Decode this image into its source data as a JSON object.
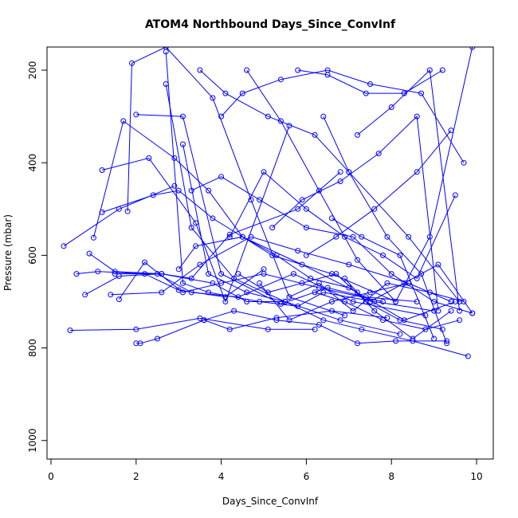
{
  "chart_data": {
    "type": "line",
    "title": "ATOM4 Northbound Days_Since_ConvInf",
    "xlabel": "Days_Since_ConvInf",
    "ylabel": "Pressure (mbar)",
    "xlim": [
      0,
      10
    ],
    "ylim": [
      1040,
      150
    ],
    "y_axis_inverted": true,
    "grid": false,
    "color": "#0000ff",
    "x_ticks": [
      "0",
      "2",
      "4",
      "6",
      "8",
      "10"
    ],
    "y_ticks": [
      "200",
      "400",
      "600",
      "800",
      "1000"
    ],
    "marker": "open-circle",
    "series": [
      {
        "x": [
          0.3,
          1.6,
          2.9
        ],
        "y": [
          580,
          500,
          450
        ]
      },
      {
        "x": [
          0.45,
          2.0,
          3.5,
          5.1,
          6.2
        ],
        "y": [
          762,
          760,
          736,
          760,
          760
        ]
      },
      {
        "x": [
          0.6,
          1.1,
          2.2,
          3.0,
          4.1,
          5.0
        ],
        "y": [
          640,
          635,
          640,
          675,
          690,
          630
        ]
      },
      {
        "x": [
          0.8,
          1.6,
          2.6,
          3.8,
          4.6,
          5.5
        ],
        "y": [
          685,
          645,
          640,
          660,
          700,
          700
        ]
      },
      {
        "x": [
          0.9,
          1.5,
          2.6,
          3.3,
          4.2,
          5.8,
          6.8
        ],
        "y": [
          596,
          635,
          640,
          650,
          555,
          500,
          420
        ]
      },
      {
        "x": [
          1.0,
          1.7,
          2.9,
          3.7,
          4.5,
          5.9,
          7.2
        ],
        "y": [
          562,
          310,
          390,
          460,
          560,
          620,
          680
        ]
      },
      {
        "x": [
          1.2,
          2.3,
          3.4,
          4.1,
          5.6
        ],
        "y": [
          416,
          390,
          530,
          700,
          320
        ]
      },
      {
        "x": [
          1.2,
          2.4,
          3.0,
          3.8,
          5.2,
          6.6,
          8.1
        ],
        "y": [
          507,
          470,
          460,
          520,
          600,
          640,
          700
        ]
      },
      {
        "x": [
          1.4,
          2.6,
          3.5,
          4.7,
          5.8,
          7.0,
          8.4
        ],
        "y": [
          685,
          680,
          620,
          560,
          590,
          620,
          660
        ]
      },
      {
        "x": [
          1.5,
          2.5,
          3.3,
          4.4,
          5.7,
          7.1,
          8.8
        ],
        "y": [
          640,
          640,
          680,
          690,
          640,
          700,
          730
        ]
      },
      {
        "x": [
          1.6,
          2.2,
          3.1,
          4.0,
          5.0,
          6.3,
          7.8
        ],
        "y": [
          695,
          615,
          680,
          660,
          640,
          670,
          700
        ]
      },
      {
        "x": [
          1.8,
          1.9,
          2.7,
          3.8,
          4.7,
          5.6,
          6.9
        ],
        "y": [
          505,
          185,
          150,
          260,
          480,
          690,
          730
        ]
      },
      {
        "x": [
          2.0,
          2.1,
          2.5,
          3.6,
          4.2,
          5.3,
          6.6,
          7.9
        ],
        "y": [
          790,
          790,
          780,
          740,
          760,
          735,
          720,
          735
        ]
      },
      {
        "x": [
          2.0,
          3.1,
          4.0,
          5.4,
          6.5,
          7.4,
          8.6
        ],
        "y": [
          296,
          300,
          640,
          705,
          670,
          690,
          700
        ]
      },
      {
        "x": [
          2.7,
          3.1,
          3.7,
          4.9,
          5.8,
          6.4,
          7.6,
          9.0
        ],
        "y": [
          160,
          660,
          680,
          700,
          710,
          680,
          700,
          720
        ]
      },
      {
        "x": [
          2.7,
          3.3,
          4.3,
          5.5,
          6.8,
          8.2
        ],
        "y": [
          230,
          540,
          650,
          700,
          740,
          770
        ]
      },
      {
        "x": [
          3.0,
          3.4,
          4.5,
          5.3,
          6.1,
          7.0,
          8.3,
          9.5
        ],
        "y": [
          630,
          580,
          560,
          600,
          650,
          670,
          740,
          700
        ]
      },
      {
        "x": [
          3.1,
          3.7,
          4.6,
          5.5,
          6.4,
          7.3,
          8.5,
          9.8
        ],
        "y": [
          360,
          640,
          680,
          700,
          740,
          760,
          785,
          818
        ]
      },
      {
        "x": [
          3.3,
          4.0,
          4.9,
          6.0,
          7.1,
          8.0,
          9.0,
          9.9
        ],
        "y": [
          460,
          430,
          480,
          540,
          560,
          640,
          700,
          725
        ]
      },
      {
        "x": [
          3.5,
          4.1,
          5.1,
          6.2,
          7.0,
          8.4,
          9.6
        ],
        "y": [
          200,
          250,
          300,
          340,
          420,
          560,
          700
        ]
      },
      {
        "x": [
          3.6,
          4.3,
          5.3,
          6.3,
          7.2,
          8.1,
          9.3
        ],
        "y": [
          740,
          720,
          740,
          750,
          790,
          785,
          785
        ]
      },
      {
        "x": [
          4.0,
          4.5,
          5.4,
          6.5,
          7.5,
          8.7,
          9.7
        ],
        "y": [
          300,
          250,
          220,
          200,
          230,
          250,
          400
        ]
      },
      {
        "x": [
          4.2,
          5.0,
          6.0,
          6.9,
          7.8,
          8.6,
          9.5
        ],
        "y": [
          560,
          420,
          500,
          560,
          600,
          650,
          470
        ]
      },
      {
        "x": [
          4.4,
          5.1,
          5.9,
          6.7,
          7.4,
          8.2,
          9.2
        ],
        "y": [
          640,
          680,
          660,
          640,
          700,
          740,
          760
        ]
      },
      {
        "x": [
          4.6,
          5.4,
          6.3,
          7.2,
          8.1,
          8.9,
          9.9
        ],
        "y": [
          200,
          310,
          460,
          610,
          700,
          560,
          150
        ]
      },
      {
        "x": [
          4.9,
          5.6,
          6.6,
          7.5,
          8.4,
          9.4
        ],
        "y": [
          660,
          740,
          700,
          680,
          660,
          700
        ]
      },
      {
        "x": [
          5.2,
          5.9,
          6.8,
          7.7,
          8.6,
          9.1
        ],
        "y": [
          540,
          480,
          440,
          380,
          300,
          720
        ]
      },
      {
        "x": [
          5.6,
          6.3,
          7.1,
          7.9,
          8.9,
          9.7
        ],
        "y": [
          690,
          660,
          720,
          660,
          680,
          700
        ]
      },
      {
        "x": [
          5.8,
          6.5,
          7.4,
          8.3,
          9.2
        ],
        "y": [
          200,
          210,
          250,
          250,
          200
        ]
      },
      {
        "x": [
          6.0,
          6.7,
          7.6,
          8.6,
          9.4
        ],
        "y": [
          600,
          560,
          500,
          420,
          330
        ]
      },
      {
        "x": [
          6.2,
          6.9,
          7.8,
          8.8,
          9.6
        ],
        "y": [
          680,
          700,
          740,
          760,
          740
        ]
      },
      {
        "x": [
          6.4,
          7.0,
          7.9,
          8.7,
          9.3
        ],
        "y": [
          300,
          420,
          560,
          640,
          790
        ]
      },
      {
        "x": [
          6.6,
          7.3,
          8.2,
          9.0
        ],
        "y": [
          520,
          560,
          600,
          780
        ]
      },
      {
        "x": [
          6.9,
          7.6,
          8.5,
          9.4
        ],
        "y": [
          650,
          720,
          780,
          720
        ]
      },
      {
        "x": [
          7.2,
          8.0,
          8.9,
          9.6
        ],
        "y": [
          340,
          280,
          200,
          720
        ]
      },
      {
        "x": [
          7.5,
          8.3,
          9.1,
          9.9
        ],
        "y": [
          700,
          660,
          620,
          725
        ]
      }
    ]
  }
}
